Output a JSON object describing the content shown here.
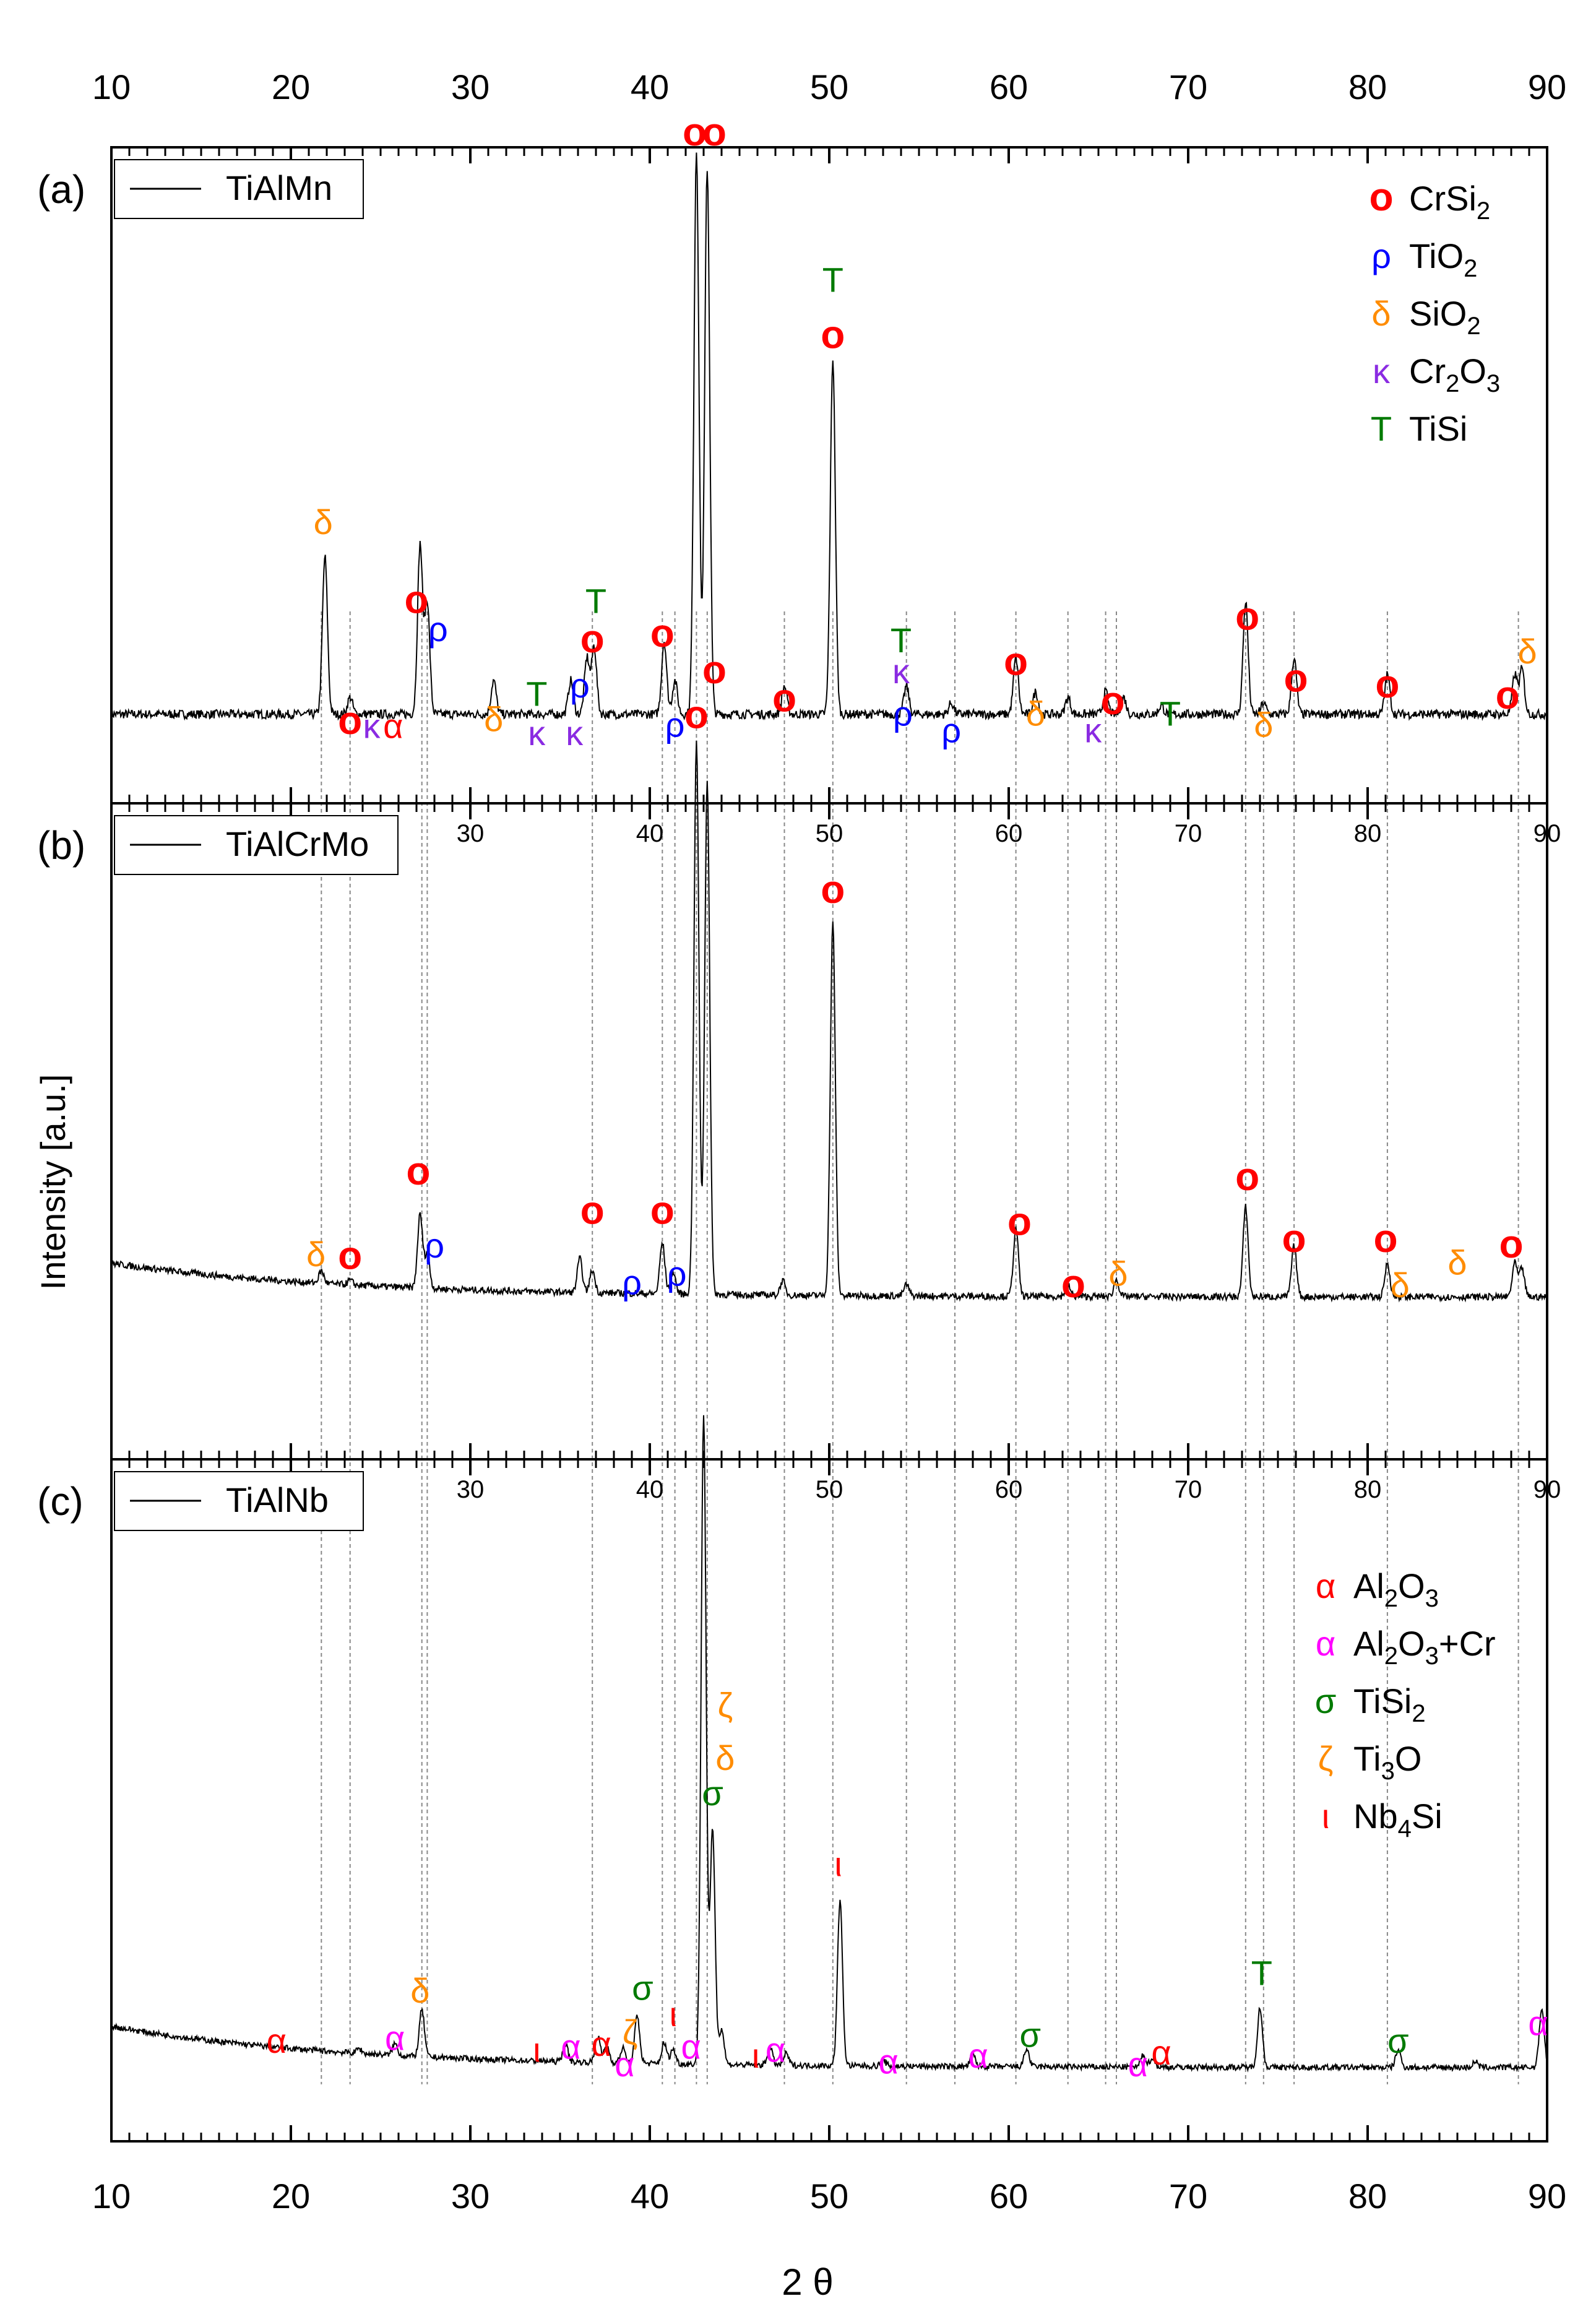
{
  "chart_data": {
    "type": "line",
    "xlabel": "2 θ",
    "ylabel": "Intensity [a.u.]",
    "xlim": [
      10,
      90
    ],
    "x_ticks": [
      10,
      20,
      30,
      40,
      50,
      60,
      70,
      80,
      90
    ],
    "colors": {
      "red": "#ff0000",
      "blue": "#0000ff",
      "orange": "#ff8c00",
      "purple": "#8a2be2",
      "green": "#007a00",
      "magenta": "#ff00ff"
    },
    "legend_primary": [
      {
        "sym": "o",
        "label": "CrSi",
        "sub": "2",
        "tail": "",
        "color": "red"
      },
      {
        "sym": "ρ",
        "label": "TiO",
        "sub": "2",
        "tail": "",
        "color": "blue"
      },
      {
        "sym": "δ",
        "label": "SiO",
        "sub": "2",
        "tail": "",
        "color": "orange"
      },
      {
        "sym": "κ",
        "label": "Cr",
        "sub": "2",
        "tail": "O3",
        "color": "purple"
      },
      {
        "sym": "T",
        "label": "TiSi",
        "sub": "",
        "tail": "",
        "color": "green"
      }
    ],
    "legend_secondary": [
      {
        "sym": "α",
        "label": "Al",
        "sub": "2",
        "tail": "O3",
        "color": "red"
      },
      {
        "sym": "α",
        "label": "Al",
        "sub": "2",
        "tail": "O3+Cr",
        "color": "magenta"
      },
      {
        "sym": "σ",
        "label": "TiSi",
        "sub": "2",
        "tail": "",
        "color": "green"
      },
      {
        "sym": "ζ",
        "label": "Ti",
        "sub": "3",
        "tail": "O",
        "color": "orange"
      },
      {
        "sym": "ι",
        "label": "Nb",
        "sub": "4",
        "tail": "Si",
        "color": "red"
      }
    ],
    "reference_lines": [
      21.7,
      23.3,
      27.3,
      27.6,
      36.8,
      40.7,
      41.4,
      42.6,
      43.2,
      47.5,
      50.2,
      54.3,
      57.0,
      60.4,
      63.3,
      65.4,
      66.0,
      73.2,
      74.2,
      75.9,
      81.1,
      88.4
    ],
    "panels": [
      {
        "id": "a",
        "panel_label": "(a)",
        "series_name": "TiAlMn",
        "baseline": 0.09,
        "noise": 0.008,
        "slope": 0,
        "peaks": [
          [
            21.9,
            0.28
          ],
          [
            23.3,
            0.03
          ],
          [
            27.2,
            0.3
          ],
          [
            27.6,
            0.2
          ],
          [
            31.3,
            0.06
          ],
          [
            35.6,
            0.06
          ],
          [
            36.5,
            0.1
          ],
          [
            36.9,
            0.12
          ],
          [
            40.8,
            0.13
          ],
          [
            41.4,
            0.06
          ],
          [
            42.6,
            1.0
          ],
          [
            43.2,
            0.97
          ],
          [
            47.5,
            0.05
          ],
          [
            50.2,
            0.63
          ],
          [
            54.3,
            0.05
          ],
          [
            56.8,
            0.02
          ],
          [
            60.4,
            0.1
          ],
          [
            61.5,
            0.04
          ],
          [
            63.3,
            0.03
          ],
          [
            65.4,
            0.04
          ],
          [
            66.4,
            0.03
          ],
          [
            68.5,
            0.015
          ],
          [
            73.2,
            0.2
          ],
          [
            74.2,
            0.02
          ],
          [
            75.9,
            0.1
          ],
          [
            81.1,
            0.07
          ],
          [
            88.2,
            0.07
          ],
          [
            88.6,
            0.08
          ]
        ],
        "labels": [
          {
            "x": 21.8,
            "y": 0.41,
            "t": "δ",
            "c": "orange"
          },
          {
            "x": 23.3,
            "y": 0.055,
            "t": "o",
            "c": "red"
          },
          {
            "x": 24.5,
            "y": 0.048,
            "t": "κ",
            "c": "purple"
          },
          {
            "x": 25.7,
            "y": 0.048,
            "t": "α",
            "c": "red"
          },
          {
            "x": 27.0,
            "y": 0.27,
            "t": "o",
            "c": "red"
          },
          {
            "x": 28.2,
            "y": 0.22,
            "t": "ρ",
            "c": "blue"
          },
          {
            "x": 31.3,
            "y": 0.06,
            "t": "δ",
            "c": "orange"
          },
          {
            "x": 33.7,
            "y": 0.105,
            "t": "T",
            "c": "green"
          },
          {
            "x": 33.7,
            "y": 0.035,
            "t": "κ",
            "c": "purple"
          },
          {
            "x": 35.8,
            "y": 0.035,
            "t": "κ",
            "c": "purple"
          },
          {
            "x": 36.1,
            "y": 0.12,
            "t": "ρ",
            "c": "blue"
          },
          {
            "x": 36.8,
            "y": 0.2,
            "t": "o",
            "c": "red"
          },
          {
            "x": 37.0,
            "y": 0.27,
            "t": "T",
            "c": "green"
          },
          {
            "x": 40.7,
            "y": 0.21,
            "t": "o",
            "c": "red"
          },
          {
            "x": 41.4,
            "y": 0.05,
            "t": "ρ",
            "c": "blue"
          },
          {
            "x": 42.5,
            "y": 1.1,
            "t": "o",
            "c": "red"
          },
          {
            "x": 43.6,
            "y": 1.1,
            "t": "o",
            "c": "red"
          },
          {
            "x": 47.5,
            "y": 0.095,
            "t": "o",
            "c": "red"
          },
          {
            "x": 50.2,
            "y": 0.84,
            "t": "T",
            "c": "green"
          },
          {
            "x": 50.2,
            "y": 0.74,
            "t": "o",
            "c": "red"
          },
          {
            "x": 54.0,
            "y": 0.2,
            "t": "T",
            "c": "green"
          },
          {
            "x": 54.0,
            "y": 0.145,
            "t": "κ",
            "c": "purple"
          },
          {
            "x": 54.1,
            "y": 0.07,
            "t": "ρ",
            "c": "blue"
          },
          {
            "x": 56.8,
            "y": 0.04,
            "t": "ρ",
            "c": "blue"
          },
          {
            "x": 60.4,
            "y": 0.16,
            "t": "o",
            "c": "red"
          },
          {
            "x": 61.5,
            "y": 0.07,
            "t": "δ",
            "c": "orange"
          },
          {
            "x": 64.7,
            "y": 0.04,
            "t": "κ",
            "c": "purple"
          },
          {
            "x": 65.8,
            "y": 0.09,
            "t": "o",
            "c": "red"
          },
          {
            "x": 69.0,
            "y": 0.07,
            "t": "T",
            "c": "green"
          },
          {
            "x": 73.3,
            "y": 0.24,
            "t": "o",
            "c": "red"
          },
          {
            "x": 74.2,
            "y": 0.05,
            "t": "δ",
            "c": "orange"
          },
          {
            "x": 76.0,
            "y": 0.13,
            "t": "o",
            "c": "red"
          },
          {
            "x": 81.1,
            "y": 0.12,
            "t": "o",
            "c": "red"
          },
          {
            "x": 87.8,
            "y": 0.1,
            "t": "o",
            "c": "red"
          },
          {
            "x": 88.9,
            "y": 0.18,
            "t": "δ",
            "c": "orange"
          }
        ]
      },
      {
        "id": "b",
        "panel_label": "(b)",
        "series_name": "TiAlCrMo",
        "baseline": 0.22,
        "noise": 0.006,
        "slope": 0.06,
        "peaks": [
          [
            21.7,
            0.022
          ],
          [
            23.3,
            0.008
          ],
          [
            27.2,
            0.13
          ],
          [
            27.6,
            0.06
          ],
          [
            36.1,
            0.06
          ],
          [
            36.8,
            0.04
          ],
          [
            40.7,
            0.09
          ],
          [
            41.3,
            0.04
          ],
          [
            42.6,
            0.98
          ],
          [
            43.2,
            0.91
          ],
          [
            47.4,
            0.025
          ],
          [
            50.2,
            0.66
          ],
          [
            54.3,
            0.02
          ],
          [
            60.4,
            0.12
          ],
          [
            63.3,
            0.02
          ],
          [
            66.0,
            0.03
          ],
          [
            73.2,
            0.16
          ],
          [
            75.9,
            0.09
          ],
          [
            81.1,
            0.06
          ],
          [
            88.2,
            0.06
          ],
          [
            88.6,
            0.05
          ]
        ],
        "labels": [
          {
            "x": 21.4,
            "y": 0.275,
            "t": "δ",
            "c": "orange"
          },
          {
            "x": 23.3,
            "y": 0.27,
            "t": "o",
            "c": "red"
          },
          {
            "x": 27.1,
            "y": 0.42,
            "t": "o",
            "c": "red"
          },
          {
            "x": 28.0,
            "y": 0.29,
            "t": "ρ",
            "c": "blue"
          },
          {
            "x": 36.8,
            "y": 0.35,
            "t": "o",
            "c": "red"
          },
          {
            "x": 39.0,
            "y": 0.225,
            "t": "ρ",
            "c": "blue"
          },
          {
            "x": 40.7,
            "y": 0.35,
            "t": "o",
            "c": "red"
          },
          {
            "x": 41.5,
            "y": 0.24,
            "t": "ρ",
            "c": "blue"
          },
          {
            "x": 42.6,
            "y": 1.23,
            "t": "o",
            "c": "red"
          },
          {
            "x": 43.6,
            "y": 1.31,
            "t": "o",
            "c": "red"
          },
          {
            "x": 50.2,
            "y": 0.92,
            "t": "o",
            "c": "red"
          },
          {
            "x": 60.6,
            "y": 0.33,
            "t": "o",
            "c": "red"
          },
          {
            "x": 63.6,
            "y": 0.22,
            "t": "o",
            "c": "red"
          },
          {
            "x": 66.1,
            "y": 0.24,
            "t": "δ",
            "c": "orange"
          },
          {
            "x": 73.3,
            "y": 0.41,
            "t": "o",
            "c": "red"
          },
          {
            "x": 75.9,
            "y": 0.3,
            "t": "o",
            "c": "red"
          },
          {
            "x": 81.0,
            "y": 0.3,
            "t": "o",
            "c": "red"
          },
          {
            "x": 81.8,
            "y": 0.22,
            "t": "δ",
            "c": "orange"
          },
          {
            "x": 85.0,
            "y": 0.26,
            "t": "δ",
            "c": "orange"
          },
          {
            "x": 88.0,
            "y": 0.29,
            "t": "o",
            "c": "red"
          }
        ]
      },
      {
        "id": "c",
        "panel_label": "(c)",
        "series_name": "TiAlNb",
        "baseline": 0.06,
        "noise": 0.005,
        "slope": 0.07,
        "peaks": [
          [
            23.8,
            0.008
          ],
          [
            25.8,
            0.02
          ],
          [
            27.3,
            0.08
          ],
          [
            35.3,
            0.03
          ],
          [
            37.1,
            0.045
          ],
          [
            37.6,
            0.03
          ],
          [
            38.5,
            0.025
          ],
          [
            39.3,
            0.08
          ],
          [
            40.8,
            0.035
          ],
          [
            41.3,
            0.025
          ],
          [
            43.0,
            1.1
          ],
          [
            43.5,
            0.4
          ],
          [
            44.0,
            0.06
          ],
          [
            46.7,
            0.03
          ],
          [
            47.6,
            0.02
          ],
          [
            50.6,
            0.28
          ],
          [
            53.0,
            0.01
          ],
          [
            58.0,
            0.02
          ],
          [
            61.0,
            0.03
          ],
          [
            67.5,
            0.02
          ],
          [
            68.0,
            0.015
          ],
          [
            74.0,
            0.1
          ],
          [
            81.7,
            0.03
          ],
          [
            86.0,
            0.01
          ],
          [
            89.7,
            0.1
          ]
        ],
        "labels": [
          {
            "x": 19.2,
            "y": 0.085,
            "t": "α",
            "c": "red"
          },
          {
            "x": 25.8,
            "y": 0.09,
            "t": "α",
            "c": "magenta"
          },
          {
            "x": 27.2,
            "y": 0.17,
            "t": "δ",
            "c": "orange"
          },
          {
            "x": 33.7,
            "y": 0.07,
            "t": "ι",
            "c": "red"
          },
          {
            "x": 35.6,
            "y": 0.075,
            "t": "α",
            "c": "magenta"
          },
          {
            "x": 37.3,
            "y": 0.08,
            "t": "α",
            "c": "red"
          },
          {
            "x": 38.6,
            "y": 0.045,
            "t": "α",
            "c": "magenta"
          },
          {
            "x": 38.9,
            "y": 0.1,
            "t": "ζ",
            "c": "orange"
          },
          {
            "x": 39.6,
            "y": 0.175,
            "t": "σ",
            "c": "green"
          },
          {
            "x": 41.3,
            "y": 0.13,
            "t": "ι",
            "c": "red"
          },
          {
            "x": 42.3,
            "y": 0.075,
            "t": "α",
            "c": "magenta"
          },
          {
            "x": 43.5,
            "y": 0.505,
            "t": "σ",
            "c": "green"
          },
          {
            "x": 44.2,
            "y": 0.565,
            "t": "δ",
            "c": "orange"
          },
          {
            "x": 44.2,
            "y": 0.655,
            "t": "ζ",
            "c": "orange"
          },
          {
            "x": 45.9,
            "y": 0.06,
            "t": "ι",
            "c": "red"
          },
          {
            "x": 47.0,
            "y": 0.07,
            "t": "α",
            "c": "magenta"
          },
          {
            "x": 50.5,
            "y": 0.385,
            "t": "ι",
            "c": "red"
          },
          {
            "x": 53.3,
            "y": 0.05,
            "t": "α",
            "c": "magenta"
          },
          {
            "x": 58.3,
            "y": 0.06,
            "t": "α",
            "c": "magenta"
          },
          {
            "x": 61.2,
            "y": 0.095,
            "t": "σ",
            "c": "green"
          },
          {
            "x": 67.2,
            "y": 0.045,
            "t": "α",
            "c": "magenta"
          },
          {
            "x": 68.5,
            "y": 0.065,
            "t": "α",
            "c": "red"
          },
          {
            "x": 74.1,
            "y": 0.2,
            "t": "T",
            "c": "green"
          },
          {
            "x": 81.7,
            "y": 0.085,
            "t": "σ",
            "c": "green"
          },
          {
            "x": 89.5,
            "y": 0.115,
            "t": "α",
            "c": "magenta"
          }
        ]
      }
    ]
  }
}
